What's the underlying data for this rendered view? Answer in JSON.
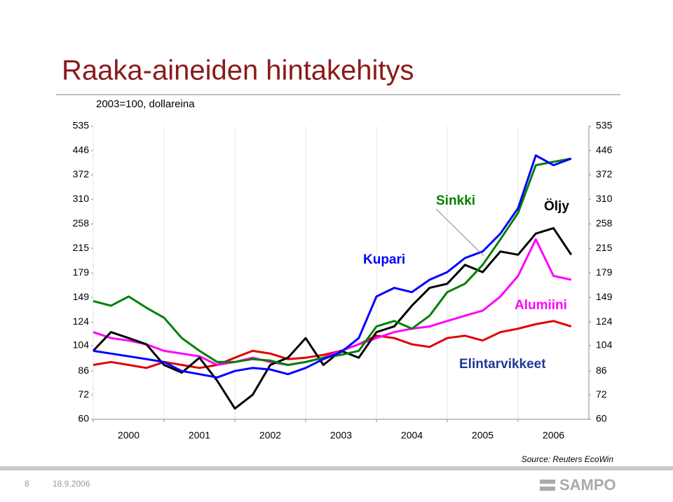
{
  "header": {
    "title": "Raaka-aineiden hintakehitys",
    "page": "8",
    "date": "18.9.2006",
    "logo": "SAMPO"
  },
  "chart_data": {
    "type": "line",
    "subtitle": "2003=100, dollareina",
    "source": "Source: Reuters EcoWin",
    "log_scale": true,
    "grid": true,
    "x": [
      2000.0,
      2000.25,
      2000.5,
      2000.75,
      2001.0,
      2001.25,
      2001.5,
      2001.75,
      2002.0,
      2002.25,
      2002.5,
      2002.75,
      2003.0,
      2003.25,
      2003.5,
      2003.75,
      2004.0,
      2004.25,
      2004.5,
      2004.75,
      2005.0,
      2005.25,
      2005.5,
      2005.75,
      2006.0,
      2006.25,
      2006.5,
      2006.75
    ],
    "xlim": [
      2000,
      2007
    ],
    "xticks": [
      2000,
      2001,
      2002,
      2003,
      2004,
      2005,
      2006
    ],
    "ylim": [
      60,
      535
    ],
    "yticks": [
      60,
      72,
      86,
      104,
      124,
      149,
      179,
      215,
      258,
      310,
      372,
      446,
      535
    ],
    "series": [
      {
        "name": "Kupari",
        "color": "#0000ff",
        "values": [
          100,
          98,
          96,
          94,
          92,
          86,
          84,
          82,
          86,
          88,
          87,
          84,
          88,
          94,
          99,
          110,
          150,
          160,
          155,
          170,
          180,
          200,
          210,
          240,
          290,
          430,
          400,
          420
        ]
      },
      {
        "name": "Sinkki",
        "color": "#008000",
        "values": [
          145,
          140,
          150,
          138,
          128,
          110,
          100,
          92,
          92,
          94,
          93,
          90,
          92,
          95,
          97,
          100,
          120,
          125,
          118,
          130,
          155,
          165,
          190,
          230,
          280,
          400,
          410,
          420
        ]
      },
      {
        "name": "Öljy",
        "color": "#000000",
        "values": [
          100,
          115,
          110,
          105,
          90,
          85,
          95,
          80,
          65,
          72,
          90,
          95,
          110,
          90,
          100,
          95,
          115,
          120,
          140,
          160,
          165,
          190,
          180,
          210,
          205,
          240,
          250,
          205
        ]
      },
      {
        "name": "Alumiini",
        "color": "#ff00ff",
        "values": [
          115,
          110,
          108,
          105,
          100,
          98,
          96,
          90,
          92,
          95,
          92,
          90,
          92,
          95,
          100,
          105,
          110,
          115,
          118,
          120,
          125,
          130,
          135,
          150,
          175,
          230,
          175,
          170
        ]
      },
      {
        "name": "Elintarvikkeet",
        "color": "#e00000",
        "values": [
          90,
          92,
          90,
          88,
          92,
          90,
          88,
          90,
          95,
          100,
          98,
          94,
          95,
          97,
          100,
          105,
          112,
          110,
          105,
          103,
          110,
          112,
          108,
          115,
          118,
          122,
          125,
          120
        ]
      }
    ]
  }
}
